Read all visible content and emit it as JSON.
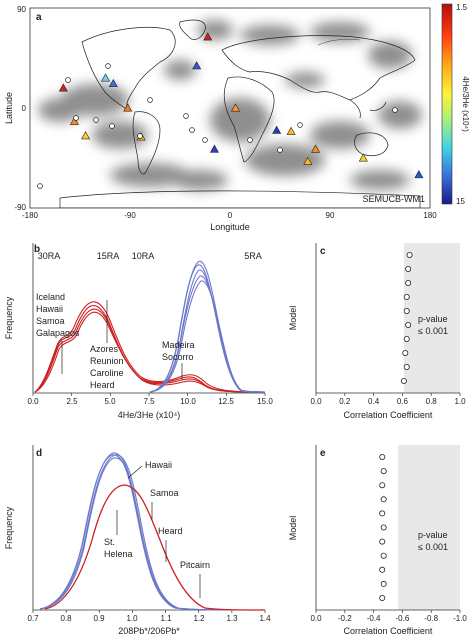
{
  "panel_a": {
    "letter": "a",
    "model_label": "SEMUCB-WM1",
    "ylabel": "Latitude",
    "xlabel": "Longitude",
    "yticks": [
      "90",
      "0",
      "-90"
    ],
    "xticks": [
      "-180",
      "-90",
      "0",
      "90",
      "180"
    ],
    "colorbar": {
      "label": "4He/3He (x10⁴)",
      "max": "1.5",
      "min": "15"
    },
    "hotspots": [
      {
        "lon": -150,
        "lat": 18,
        "c": "#d62020"
      },
      {
        "lon": -140,
        "lat": -12,
        "c": "#ff8a1a"
      },
      {
        "lon": -130,
        "lat": -25,
        "c": "#ffd21f"
      },
      {
        "lon": -112,
        "lat": 27,
        "c": "#6fd3f0"
      },
      {
        "lon": -105,
        "lat": 22,
        "c": "#3a6fd9"
      },
      {
        "lon": -92,
        "lat": 0,
        "c": "#ff7a10"
      },
      {
        "lon": -80,
        "lat": -26,
        "c": "#ffb41f"
      },
      {
        "lon": -30,
        "lat": 38,
        "c": "#2d5bd1"
      },
      {
        "lon": -20,
        "lat": 64,
        "c": "#d62020"
      },
      {
        "lon": -14,
        "lat": -37,
        "c": "#2b3fc0"
      },
      {
        "lon": 5,
        "lat": 0,
        "c": "#ff9a20"
      },
      {
        "lon": 42,
        "lat": -20,
        "c": "#2140b5"
      },
      {
        "lon": 55,
        "lat": -21,
        "c": "#ffb820"
      },
      {
        "lon": 70,
        "lat": -48,
        "c": "#ffb820"
      },
      {
        "lon": 77,
        "lat": -37,
        "c": "#ff8a1a"
      },
      {
        "lon": 120,
        "lat": -45,
        "c": "#ffd21f"
      },
      {
        "lon": 170,
        "lat": -60,
        "c": "#2b55cc"
      }
    ]
  },
  "panel_b": {
    "letter": "b",
    "ylabel": "Frequency",
    "xlabel": "4He/3He (x10⁴)",
    "xticks": [
      "0.0",
      "2.5",
      "5.0",
      "7.5",
      "10.0",
      "12.5",
      "15.0"
    ],
    "ra_labels": [
      "30RA",
      "15RA",
      "10RA",
      "5RA"
    ],
    "left_group": [
      "Iceland",
      "Hawaii",
      "Samoa",
      "Galapagos"
    ],
    "mid_group": [
      "Azores",
      "Reunion",
      "Caroline",
      "Heard"
    ],
    "right_group": [
      "Madeira",
      "Socorro"
    ]
  },
  "panel_c": {
    "letter": "c",
    "ylabel": "Model",
    "xlabel": "Correlation Coefficient",
    "xticks": [
      "0.0",
      "0.2",
      "0.4",
      "0.6",
      "0.8",
      "1.0"
    ],
    "pvalue_label": "p-value",
    "pvalue_value": "≤ 0.001",
    "chart_data": {
      "type": "scatter",
      "xlim": [
        0,
        1
      ],
      "shaded_from": 0.61,
      "x": [
        0.65,
        0.64,
        0.64,
        0.63,
        0.63,
        0.64,
        0.63,
        0.62,
        0.63,
        0.61
      ]
    }
  },
  "panel_d": {
    "letter": "d",
    "ylabel": "Frequency",
    "xlabel": "208Pb*/206Pb*",
    "xticks": [
      "0.7",
      "0.8",
      "0.9",
      "1.0",
      "1.1",
      "1.2",
      "1.3",
      "1.4"
    ],
    "labels": [
      "Hawaii",
      "Samoa",
      "St.",
      "Helena",
      "Heard",
      "Pitcairn"
    ]
  },
  "panel_e": {
    "letter": "e",
    "ylabel": "Model",
    "xlabel": "Correlation Coefficient",
    "xticks": [
      "0.0",
      "-0.2",
      "-0.4",
      "-0.6",
      "-0.8",
      "-1.0"
    ],
    "pvalue_label": "p-value",
    "pvalue_value": "≤ 0.001",
    "chart_data": {
      "type": "scatter",
      "xlim": [
        0,
        -1
      ],
      "shaded_from": -0.57,
      "x": [
        -0.46,
        -0.47,
        -0.46,
        -0.47,
        -0.46,
        -0.47,
        -0.46,
        -0.47,
        -0.46,
        -0.47,
        -0.46
      ]
    }
  }
}
